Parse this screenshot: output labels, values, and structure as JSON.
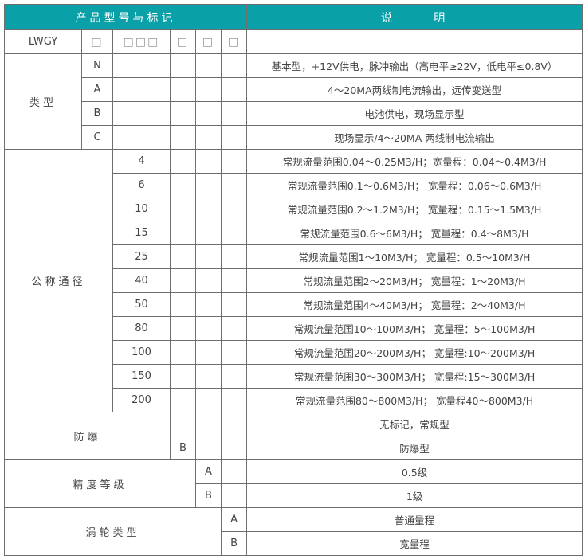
{
  "header": {
    "model_title": "产品型号与标记",
    "desc_title": "说 明"
  },
  "code_row": {
    "prefix": "LWGY",
    "boxes": [
      "□",
      "□□□",
      "□",
      "□",
      "□"
    ],
    "desc": ""
  },
  "type": {
    "label": "类型",
    "items": [
      {
        "code": "N",
        "desc": "基本型，+12V供电，脉冲输出（高电平≥22V，低电平≤0.8V）"
      },
      {
        "code": "A",
        "desc": "4～20MA两线制电流输出，远传变送型"
      },
      {
        "code": "B",
        "desc": "电池供电，现场显示型"
      },
      {
        "code": "C",
        "desc": "现场显示/4～20MA 两线制电流输出"
      }
    ]
  },
  "diameter": {
    "label": "公称通径",
    "items": [
      {
        "code": "4",
        "desc": "常规流量范围0.04～0.25M3/H；宽量程：0.04～0.4M3/H"
      },
      {
        "code": "6",
        "desc": "常规流量范围0.1～0.6M3/H；  宽量程：0.06～0.6M3/H"
      },
      {
        "code": "10",
        "desc": "常规流量范围0.2～1.2M3/H；  宽量程：0.15～1.5M3/H"
      },
      {
        "code": "15",
        "desc": "常规流量范围0.6～6M3/H；   宽量程：0.4～8M3/H"
      },
      {
        "code": "25",
        "desc": "常规流量范围1～10M3/H；   宽量程：0.5～10M3/H"
      },
      {
        "code": "40",
        "desc": "常规流量范围2～20M3/H；   宽量程：1～20M3/H"
      },
      {
        "code": "50",
        "desc": "常规流量范围4～40M3/H；   宽量程：2～40M3/H"
      },
      {
        "code": "80",
        "desc": "常规流量范围10～100M3/H；  宽量程：5～100M3/H"
      },
      {
        "code": "100",
        "desc": "常规流量范围20～200M3/H；  宽量程:10～200M3/H"
      },
      {
        "code": "150",
        "desc": "常规流量范围30～300M3/H；  宽量程:15～300M3/H"
      },
      {
        "code": "200",
        "desc": "常规流量范围80～800M3/H；  宽量程40～800M3/H"
      }
    ]
  },
  "explosion": {
    "label": "防爆",
    "items": [
      {
        "code": "",
        "desc": "无标记，常规型"
      },
      {
        "code": "B",
        "desc": "防爆型"
      }
    ]
  },
  "accuracy": {
    "label": "精度等级",
    "items": [
      {
        "code": "A",
        "desc": "0.5级"
      },
      {
        "code": "B",
        "desc": "1级"
      }
    ]
  },
  "turbine": {
    "label": "涡轮类型",
    "items": [
      {
        "code": "A",
        "desc": "普通量程"
      },
      {
        "code": "B",
        "desc": "宽量程"
      }
    ]
  },
  "colors": {
    "header_bg": "#0aa0a8",
    "border": "#6e6e6e",
    "text": "#444444"
  }
}
